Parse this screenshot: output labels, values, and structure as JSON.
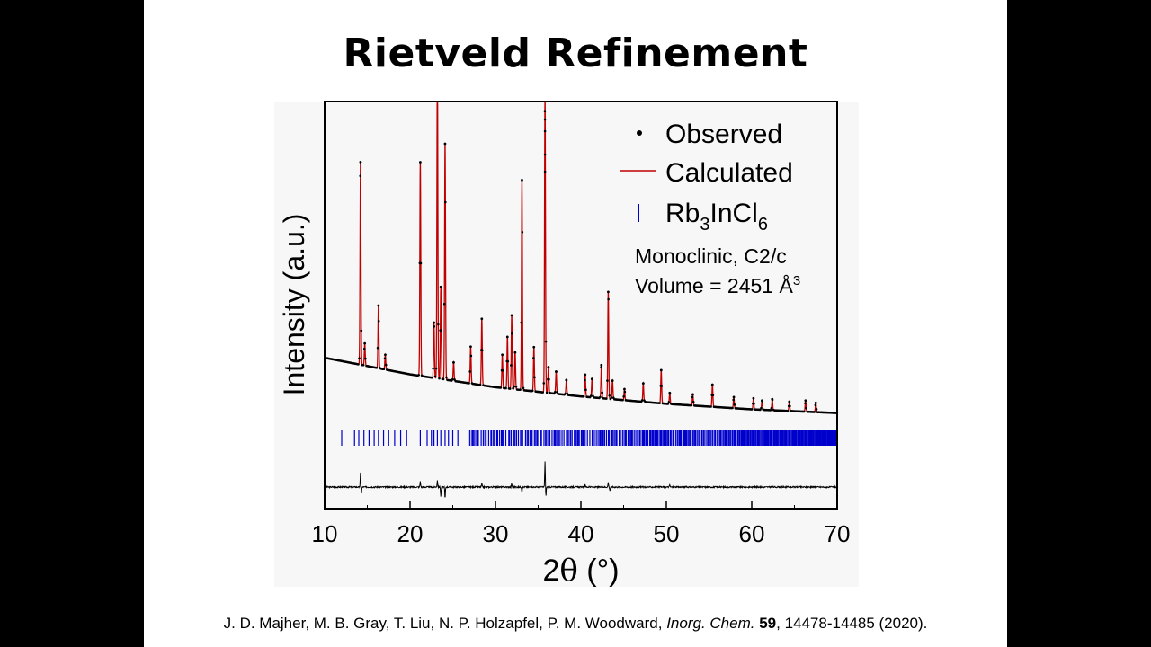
{
  "slide": {
    "title": "Rietveld Refinement",
    "citation": {
      "authors": "J. D. Majher, M. B. Gray, T. Liu, N. P. Holzapfel, P. M. Woodward,",
      "journal": "Inorg. Chem.",
      "volume": "59",
      "rest": ", 14478-14485 (2020)."
    }
  },
  "chart_data": {
    "type": "line",
    "xlabel_main": "2",
    "xlabel_theta": "θ",
    "xlabel_unit": " (°)",
    "ylabel": "Intensity (a.u.)",
    "xlim": [
      10,
      70
    ],
    "xticks": [
      "10",
      "20",
      "30",
      "40",
      "50",
      "60",
      "70"
    ],
    "grid": false,
    "legend": {
      "placement": "top-right",
      "observed": "Observed",
      "calculated": "Calculated",
      "phase_base": "Rb",
      "phase_sub1": "3",
      "phase_mid": "InCl",
      "phase_sub2": "6"
    },
    "annotation": {
      "line1": "Monoclinic, C2/c",
      "line2_prefix": "Volume = 2451 Å",
      "line2_sup": "3"
    },
    "colors": {
      "observed": "#000000",
      "calculated": "#c00000",
      "bragg": "#0000cc",
      "difference": "#000000"
    },
    "background": {
      "x": [
        10,
        20,
        30,
        40,
        50,
        60,
        70
      ],
      "y": [
        0.19,
        0.145,
        0.11,
        0.085,
        0.065,
        0.05,
        0.04
      ]
    },
    "peaks": [
      {
        "x": 14.2,
        "h": 0.55
      },
      {
        "x": 14.7,
        "h": 0.06
      },
      {
        "x": 16.3,
        "h": 0.17
      },
      {
        "x": 17.1,
        "h": 0.04
      },
      {
        "x": 21.2,
        "h": 0.58
      },
      {
        "x": 22.8,
        "h": 0.15
      },
      {
        "x": 23.2,
        "h": 0.87
      },
      {
        "x": 23.6,
        "h": 0.25
      },
      {
        "x": 24.1,
        "h": 0.64
      },
      {
        "x": 25.1,
        "h": 0.05
      },
      {
        "x": 27.1,
        "h": 0.1
      },
      {
        "x": 28.4,
        "h": 0.18
      },
      {
        "x": 30.8,
        "h": 0.09
      },
      {
        "x": 31.4,
        "h": 0.14
      },
      {
        "x": 31.9,
        "h": 0.2
      },
      {
        "x": 32.3,
        "h": 0.1
      },
      {
        "x": 33.1,
        "h": 0.57
      },
      {
        "x": 34.5,
        "h": 0.12
      },
      {
        "x": 35.8,
        "h": 0.82
      },
      {
        "x": 36.2,
        "h": 0.07
      },
      {
        "x": 37.1,
        "h": 0.06
      },
      {
        "x": 38.3,
        "h": 0.04
      },
      {
        "x": 40.5,
        "h": 0.06
      },
      {
        "x": 41.3,
        "h": 0.05
      },
      {
        "x": 42.4,
        "h": 0.09
      },
      {
        "x": 43.2,
        "h": 0.29
      },
      {
        "x": 43.7,
        "h": 0.05
      },
      {
        "x": 45.1,
        "h": 0.03
      },
      {
        "x": 47.3,
        "h": 0.05
      },
      {
        "x": 49.4,
        "h": 0.09
      },
      {
        "x": 50.4,
        "h": 0.03
      },
      {
        "x": 53.1,
        "h": 0.03
      },
      {
        "x": 55.4,
        "h": 0.06
      },
      {
        "x": 57.9,
        "h": 0.03
      },
      {
        "x": 60.2,
        "h": 0.03
      },
      {
        "x": 61.2,
        "h": 0.025
      },
      {
        "x": 62.4,
        "h": 0.03
      },
      {
        "x": 64.4,
        "h": 0.025
      },
      {
        "x": 66.3,
        "h": 0.03
      },
      {
        "x": 67.5,
        "h": 0.025
      }
    ],
    "bragg_ticks": [
      12.0,
      13.5,
      14.0,
      14.6,
      15.2,
      15.8,
      16.3,
      16.9,
      17.5,
      18.2,
      18.9,
      19.6,
      21.2,
      22.0,
      22.5,
      22.8,
      23.2,
      23.6,
      24.1,
      24.5,
      25.0,
      25.6
    ],
    "bragg_dense_range": [
      26.8,
      69.9
    ],
    "difference_spikes": [
      {
        "x": 14.2,
        "d": 0.06
      },
      {
        "x": 14.3,
        "d": -0.03
      },
      {
        "x": 21.2,
        "d": 0.025
      },
      {
        "x": 23.2,
        "d": 0.03
      },
      {
        "x": 23.6,
        "d": -0.04
      },
      {
        "x": 24.1,
        "d": -0.05
      },
      {
        "x": 28.4,
        "d": 0.015
      },
      {
        "x": 31.9,
        "d": 0.015
      },
      {
        "x": 33.1,
        "d": -0.02
      },
      {
        "x": 35.8,
        "d": 0.11
      },
      {
        "x": 35.9,
        "d": -0.04
      },
      {
        "x": 40.5,
        "d": 0.012
      },
      {
        "x": 43.2,
        "d": 0.02
      },
      {
        "x": 43.4,
        "d": -0.015
      },
      {
        "x": 50.4,
        "d": 0.01
      }
    ],
    "offscale_points_x": 35.8
  }
}
